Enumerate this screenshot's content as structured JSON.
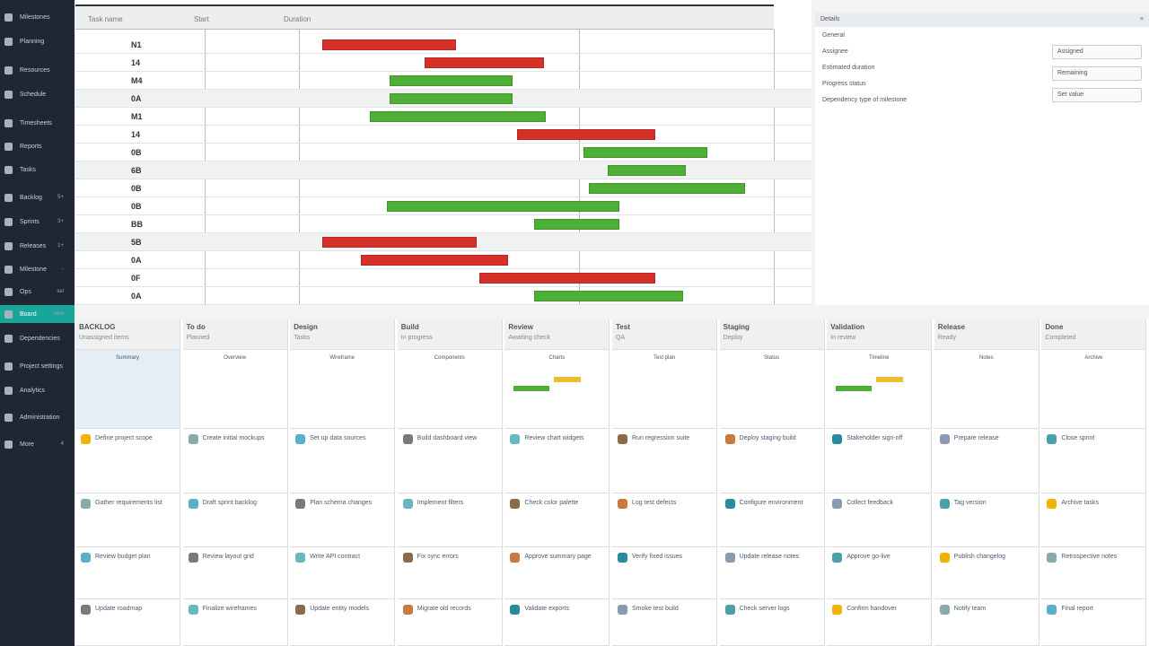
{
  "sidebar": {
    "items": [
      {
        "label": "Milestones",
        "badge": ""
      },
      {
        "label": "Planning",
        "badge": ""
      },
      {
        "label": "Resources",
        "badge": ""
      },
      {
        "label": "Schedule",
        "badge": ""
      },
      {
        "label": "Timesheets",
        "badge": ""
      },
      {
        "label": "Reports",
        "badge": ""
      },
      {
        "label": "Tasks",
        "badge": ""
      },
      {
        "label": "Backlog",
        "badge": "5+"
      },
      {
        "label": "Sprints",
        "badge": "3+"
      },
      {
        "label": "Releases",
        "badge": "1+"
      },
      {
        "label": "Milestone",
        "badge": "-"
      },
      {
        "label": "Ops",
        "badge": "sel"
      },
      {
        "label": "Board",
        "badge": "new"
      },
      {
        "label": "Dependencies",
        "badge": ""
      },
      {
        "label": "Project settings",
        "badge": ""
      },
      {
        "label": "Analytics",
        "badge": ""
      },
      {
        "label": "Administration",
        "badge": ""
      },
      {
        "label": "More",
        "badge": "4"
      }
    ],
    "accent": "#19a59a"
  },
  "gantt": {
    "headers": [
      "Task name",
      "Start",
      "Duration"
    ],
    "rows": [
      "N1",
      "14",
      "M4",
      "0A",
      "M1",
      "14",
      "0B",
      "6B",
      "0B",
      "0B",
      "BB",
      "5B",
      "0A",
      "0F",
      "0A"
    ],
    "bars": [
      {
        "start": 5,
        "end": 33,
        "color": "red"
      },
      {
        "start": 26.5,
        "end": 51.6,
        "color": "red"
      },
      {
        "start": 19,
        "end": 45,
        "color": "green"
      },
      {
        "start": 19,
        "end": 45,
        "color": "green"
      },
      {
        "start": 15,
        "end": 52,
        "color": "green"
      },
      {
        "start": 46,
        "end": 75,
        "color": "red"
      },
      {
        "start": 60,
        "end": 86,
        "color": "green"
      },
      {
        "start": 65,
        "end": 81.5,
        "color": "green"
      },
      {
        "start": 61,
        "end": 94,
        "color": "green"
      },
      {
        "start": 18.5,
        "end": 67.5,
        "color": "green"
      },
      {
        "start": 49.5,
        "end": 67.5,
        "color": "green"
      },
      {
        "start": 5,
        "end": 37.5,
        "color": "red"
      },
      {
        "start": 13,
        "end": 44,
        "color": "red"
      },
      {
        "start": 38,
        "end": 75,
        "color": "red"
      },
      {
        "start": 49.5,
        "end": 81,
        "color": "green"
      }
    ],
    "range": [
      0,
      100
    ],
    "colors": {
      "red": "#d6302b",
      "green": "#4fae36"
    }
  },
  "props": {
    "title": "Details",
    "close": "×",
    "section": "General",
    "rows": [
      "Assignee",
      "Estimated duration",
      "Progress status",
      "Dependency type of milestone"
    ],
    "fields": [
      "Assigned",
      "Remaining",
      "Set value"
    ]
  },
  "board": {
    "columns": [
      {
        "title": "BACKLOG",
        "sub": "Unassigned items",
        "preview": "Summary"
      },
      {
        "title": "To do",
        "sub": "Planned",
        "preview": "Overview"
      },
      {
        "title": "Design",
        "sub": "Tasks",
        "preview": "Wireframe"
      },
      {
        "title": "Build",
        "sub": "In progress",
        "preview": "Components"
      },
      {
        "title": "Review",
        "sub": "Awaiting check",
        "preview": "Charts"
      },
      {
        "title": "Test",
        "sub": "QA",
        "preview": "Test plan"
      },
      {
        "title": "Staging",
        "sub": "Deploy",
        "preview": "Status"
      },
      {
        "title": "Validation",
        "sub": "In review",
        "preview": "Timeline"
      },
      {
        "title": "Release",
        "sub": "Ready",
        "preview": "Notes"
      },
      {
        "title": "Done",
        "sub": "Completed",
        "preview": "Archive"
      }
    ],
    "cards": [
      [
        "Define project scope",
        "Gather requirements list",
        "Review budget plan",
        "Update roadmap"
      ],
      [
        "Create initial mockups",
        "Draft sprint backlog",
        "Review layout grid",
        "Finalize wireframes"
      ],
      [
        "Set up data sources",
        "Plan schema changes",
        "Write API contract",
        "Update entity models"
      ],
      [
        "Build dashboard view",
        "Implement filters",
        "Fix sync errors",
        "Migrate old records"
      ],
      [
        "Review chart widgets",
        "Check color palette",
        "Approve summary page",
        "Validate exports"
      ],
      [
        "Run regression suite",
        "Log test defects",
        "Verify fixed issues",
        "Smoke test build"
      ],
      [
        "Deploy staging build",
        "Configure environment",
        "Update release notes",
        "Check server logs"
      ],
      [
        "Stakeholder sign-off",
        "Collect feedback",
        "Approve go-live",
        "Confirm handover"
      ],
      [
        "Prepare release",
        "Tag version",
        "Publish changelog",
        "Notify team"
      ],
      [
        "Close sprint",
        "Archive tasks",
        "Retrospective notes",
        "Final report"
      ]
    ]
  }
}
